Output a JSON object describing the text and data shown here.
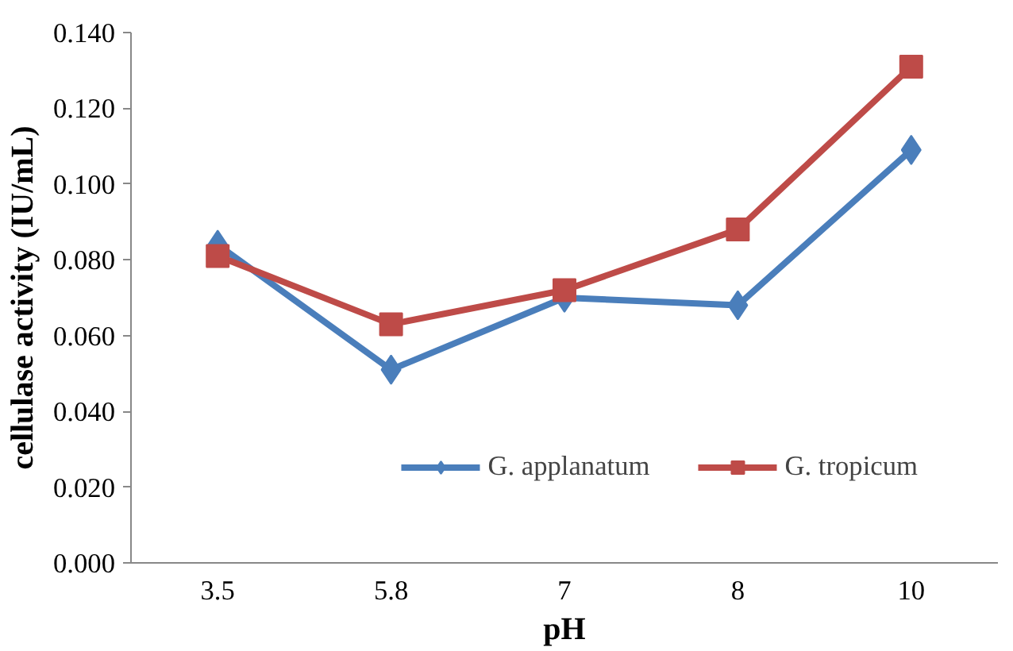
{
  "chart_data": {
    "type": "line",
    "xlabel": "pH",
    "ylabel": "cellulase activity (IU/mL)",
    "categories": [
      "3.5",
      "5.8",
      "7",
      "8",
      "10"
    ],
    "series": [
      {
        "name": "G. applanatum",
        "color": "#4a7ebb",
        "marker": "diamond",
        "values": [
          0.084,
          0.051,
          0.07,
          0.068,
          0.109
        ]
      },
      {
        "name": "G. tropicum",
        "color": "#be4b48",
        "marker": "square",
        "values": [
          0.081,
          0.063,
          0.072,
          0.088,
          0.131
        ]
      }
    ],
    "ylim": [
      0,
      0.14
    ],
    "yticks": [
      {
        "value": 0,
        "label": "0.000"
      },
      {
        "value": 0.02,
        "label": "0.020"
      },
      {
        "value": 0.04,
        "label": "0.040"
      },
      {
        "value": 0.06,
        "label": "0.060"
      },
      {
        "value": 0.08,
        "label": "0.080"
      },
      {
        "value": 0.1,
        "label": "0.100"
      },
      {
        "value": 0.12,
        "label": "0.120"
      },
      {
        "value": 0.14,
        "label": "0.140"
      }
    ],
    "grid": false,
    "legend": "bottom right",
    "line_style": "solid"
  }
}
